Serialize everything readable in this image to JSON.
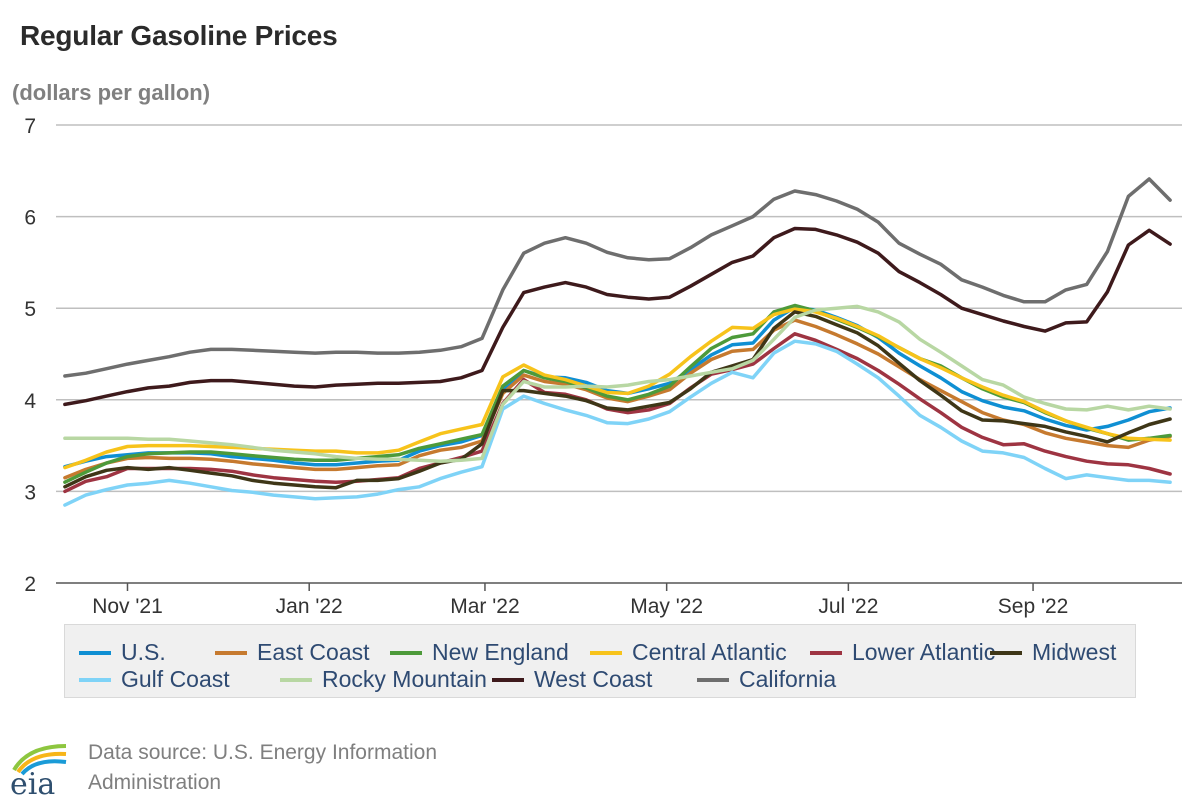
{
  "title": "Regular Gasoline Prices",
  "subtitle": "(dollars per gallon)",
  "source": "Data source: U.S. Energy Information Administration",
  "logo_text": "eia",
  "chart_data": {
    "type": "line",
    "title": "Regular Gasoline Prices",
    "ylabel": "(dollars per gallon)",
    "xlabel": "",
    "x": [
      "2021-10-11",
      "2021-10-18",
      "2021-10-25",
      "2021-11-01",
      "2021-11-08",
      "2021-11-15",
      "2021-11-22",
      "2021-11-29",
      "2021-12-06",
      "2021-12-13",
      "2021-12-20",
      "2021-12-27",
      "2022-01-03",
      "2022-01-10",
      "2022-01-17",
      "2022-01-24",
      "2022-01-31",
      "2022-02-07",
      "2022-02-14",
      "2022-02-21",
      "2022-02-28",
      "2022-03-07",
      "2022-03-14",
      "2022-03-21",
      "2022-03-28",
      "2022-04-04",
      "2022-04-11",
      "2022-04-18",
      "2022-04-25",
      "2022-05-02",
      "2022-05-09",
      "2022-05-16",
      "2022-05-23",
      "2022-05-30",
      "2022-06-06",
      "2022-06-13",
      "2022-06-20",
      "2022-06-27",
      "2022-07-04",
      "2022-07-11",
      "2022-07-18",
      "2022-07-25",
      "2022-08-01",
      "2022-08-08",
      "2022-08-15",
      "2022-08-22",
      "2022-08-29",
      "2022-09-05",
      "2022-09-12",
      "2022-09-19",
      "2022-09-26",
      "2022-10-03",
      "2022-10-10",
      "2022-10-17"
    ],
    "x_ticks": [
      "Nov '21",
      "Jan '22",
      "Mar '22",
      "May '22",
      "Jul '22",
      "Sep '22"
    ],
    "x_tick_dates": [
      "2021-11-01",
      "2022-01-01",
      "2022-03-01",
      "2022-05-01",
      "2022-07-01",
      "2022-09-01"
    ],
    "x_range": [
      "2021-10-08",
      "2022-10-21"
    ],
    "ylim": [
      2,
      7
    ],
    "y_ticks": [
      2,
      3,
      4,
      5,
      6,
      7
    ],
    "grid": "horizontal",
    "legend": "bottom",
    "series": [
      {
        "name": "U.S.",
        "color": "#0f8fd3",
        "values": [
          3.27,
          3.33,
          3.38,
          3.4,
          3.42,
          3.42,
          3.42,
          3.41,
          3.38,
          3.36,
          3.34,
          3.31,
          3.29,
          3.29,
          3.31,
          3.33,
          3.34,
          3.44,
          3.5,
          3.54,
          3.61,
          4.1,
          4.32,
          4.25,
          4.24,
          4.19,
          4.1,
          4.07,
          4.12,
          4.18,
          4.33,
          4.49,
          4.6,
          4.62,
          4.87,
          5.01,
          4.98,
          4.9,
          4.81,
          4.68,
          4.51,
          4.37,
          4.24,
          4.09,
          3.99,
          3.92,
          3.88,
          3.79,
          3.72,
          3.67,
          3.71,
          3.78,
          3.87,
          3.91
        ]
      },
      {
        "name": "East Coast",
        "color": "#c67a2f",
        "values": [
          3.15,
          3.24,
          3.31,
          3.36,
          3.37,
          3.36,
          3.36,
          3.35,
          3.33,
          3.3,
          3.28,
          3.26,
          3.24,
          3.24,
          3.26,
          3.28,
          3.29,
          3.39,
          3.45,
          3.48,
          3.55,
          4.07,
          4.27,
          4.2,
          4.17,
          4.11,
          4.02,
          3.98,
          4.04,
          4.11,
          4.29,
          4.44,
          4.53,
          4.55,
          4.76,
          4.87,
          4.8,
          4.71,
          4.61,
          4.5,
          4.36,
          4.22,
          4.1,
          3.98,
          3.86,
          3.78,
          3.73,
          3.64,
          3.58,
          3.54,
          3.5,
          3.48,
          3.56,
          3.6
        ]
      },
      {
        "name": "New England",
        "color": "#4d9a3a",
        "values": [
          3.1,
          3.21,
          3.31,
          3.38,
          3.41,
          3.42,
          3.43,
          3.43,
          3.41,
          3.39,
          3.37,
          3.35,
          3.34,
          3.34,
          3.36,
          3.38,
          3.4,
          3.47,
          3.52,
          3.57,
          3.62,
          4.15,
          4.32,
          4.24,
          4.2,
          4.13,
          4.04,
          4.0,
          4.06,
          4.15,
          4.36,
          4.56,
          4.68,
          4.72,
          4.96,
          5.03,
          4.97,
          4.88,
          4.79,
          4.69,
          4.57,
          4.45,
          4.37,
          4.24,
          4.12,
          4.03,
          3.97,
          3.86,
          3.77,
          3.69,
          3.63,
          3.56,
          3.58,
          3.61
        ]
      },
      {
        "name": "Central Atlantic",
        "color": "#f7c31b",
        "values": [
          3.26,
          3.34,
          3.43,
          3.49,
          3.5,
          3.5,
          3.5,
          3.49,
          3.48,
          3.47,
          3.46,
          3.45,
          3.44,
          3.44,
          3.42,
          3.42,
          3.45,
          3.54,
          3.63,
          3.68,
          3.73,
          4.25,
          4.38,
          4.27,
          4.22,
          4.15,
          4.08,
          4.07,
          4.15,
          4.28,
          4.47,
          4.64,
          4.79,
          4.78,
          4.93,
          4.99,
          4.96,
          4.89,
          4.8,
          4.7,
          4.57,
          4.45,
          4.35,
          4.24,
          4.14,
          4.05,
          3.98,
          3.87,
          3.77,
          3.7,
          3.63,
          3.58,
          3.57,
          3.56
        ]
      },
      {
        "name": "Lower Atlantic",
        "color": "#9e3442",
        "values": [
          3.0,
          3.11,
          3.16,
          3.25,
          3.25,
          3.25,
          3.25,
          3.24,
          3.22,
          3.18,
          3.15,
          3.13,
          3.11,
          3.1,
          3.11,
          3.13,
          3.15,
          3.25,
          3.31,
          3.37,
          3.44,
          3.96,
          4.22,
          4.08,
          4.06,
          4.0,
          3.9,
          3.86,
          3.89,
          3.96,
          4.13,
          4.28,
          4.33,
          4.39,
          4.56,
          4.72,
          4.65,
          4.55,
          4.45,
          4.32,
          4.17,
          4.01,
          3.86,
          3.7,
          3.59,
          3.51,
          3.52,
          3.44,
          3.38,
          3.33,
          3.3,
          3.29,
          3.25,
          3.19
        ]
      },
      {
        "name": "Midwest",
        "color": "#3e3617",
        "values": [
          3.05,
          3.16,
          3.23,
          3.26,
          3.24,
          3.26,
          3.23,
          3.2,
          3.17,
          3.12,
          3.09,
          3.07,
          3.05,
          3.04,
          3.12,
          3.12,
          3.14,
          3.22,
          3.31,
          3.35,
          3.52,
          4.1,
          4.1,
          4.07,
          4.04,
          3.99,
          3.91,
          3.89,
          3.93,
          3.97,
          4.12,
          4.3,
          4.37,
          4.44,
          4.78,
          4.96,
          4.91,
          4.82,
          4.73,
          4.59,
          4.4,
          4.21,
          4.05,
          3.88,
          3.78,
          3.77,
          3.74,
          3.71,
          3.65,
          3.6,
          3.54,
          3.64,
          3.73,
          3.79
        ]
      },
      {
        "name": "Gulf Coast",
        "color": "#7fd3f7",
        "values": [
          2.85,
          2.96,
          3.02,
          3.07,
          3.09,
          3.12,
          3.09,
          3.05,
          3.01,
          2.99,
          2.96,
          2.94,
          2.92,
          2.93,
          2.94,
          2.97,
          3.02,
          3.05,
          3.14,
          3.21,
          3.27,
          3.9,
          4.04,
          3.96,
          3.89,
          3.83,
          3.75,
          3.74,
          3.79,
          3.87,
          4.03,
          4.18,
          4.3,
          4.24,
          4.51,
          4.64,
          4.61,
          4.53,
          4.39,
          4.24,
          4.04,
          3.83,
          3.7,
          3.55,
          3.44,
          3.42,
          3.37,
          3.25,
          3.14,
          3.18,
          3.15,
          3.12,
          3.12,
          3.1
        ]
      },
      {
        "name": "Rocky Mountain",
        "color": "#b8d7a3",
        "values": [
          3.58,
          3.58,
          3.58,
          3.58,
          3.57,
          3.57,
          3.55,
          3.53,
          3.51,
          3.48,
          3.45,
          3.43,
          3.41,
          3.38,
          3.36,
          3.35,
          3.35,
          3.34,
          3.33,
          3.34,
          3.36,
          3.95,
          4.2,
          4.14,
          4.14,
          4.15,
          4.14,
          4.16,
          4.2,
          4.22,
          4.26,
          4.3,
          4.34,
          4.43,
          4.66,
          4.9,
          4.98,
          5.0,
          5.02,
          4.96,
          4.85,
          4.66,
          4.52,
          4.37,
          4.22,
          4.16,
          4.03,
          3.96,
          3.9,
          3.89,
          3.93,
          3.89,
          3.93,
          3.9
        ]
      },
      {
        "name": "West Coast",
        "color": "#3e1a1c",
        "values": [
          3.95,
          3.99,
          4.04,
          4.09,
          4.13,
          4.15,
          4.19,
          4.21,
          4.21,
          4.19,
          4.17,
          4.15,
          4.14,
          4.16,
          4.17,
          4.18,
          4.18,
          4.19,
          4.2,
          4.24,
          4.32,
          4.79,
          5.17,
          5.23,
          5.28,
          5.23,
          5.15,
          5.12,
          5.1,
          5.12,
          5.24,
          5.37,
          5.5,
          5.57,
          5.77,
          5.87,
          5.86,
          5.8,
          5.72,
          5.6,
          5.4,
          5.28,
          5.15,
          5.0,
          4.93,
          4.86,
          4.8,
          4.75,
          4.84,
          4.85,
          5.18,
          5.69,
          5.85,
          5.7
        ]
      },
      {
        "name": "California",
        "color": "#6e6e6e",
        "values": [
          4.26,
          4.29,
          4.34,
          4.39,
          4.43,
          4.47,
          4.52,
          4.55,
          4.55,
          4.54,
          4.53,
          4.52,
          4.51,
          4.52,
          4.52,
          4.51,
          4.51,
          4.52,
          4.54,
          4.58,
          4.67,
          5.2,
          5.6,
          5.71,
          5.77,
          5.71,
          5.61,
          5.55,
          5.53,
          5.54,
          5.66,
          5.8,
          5.9,
          6.0,
          6.19,
          6.28,
          6.24,
          6.17,
          6.08,
          5.94,
          5.71,
          5.59,
          5.48,
          5.31,
          5.23,
          5.14,
          5.07,
          5.07,
          5.2,
          5.26,
          5.62,
          6.22,
          6.41,
          6.18
        ]
      }
    ]
  }
}
